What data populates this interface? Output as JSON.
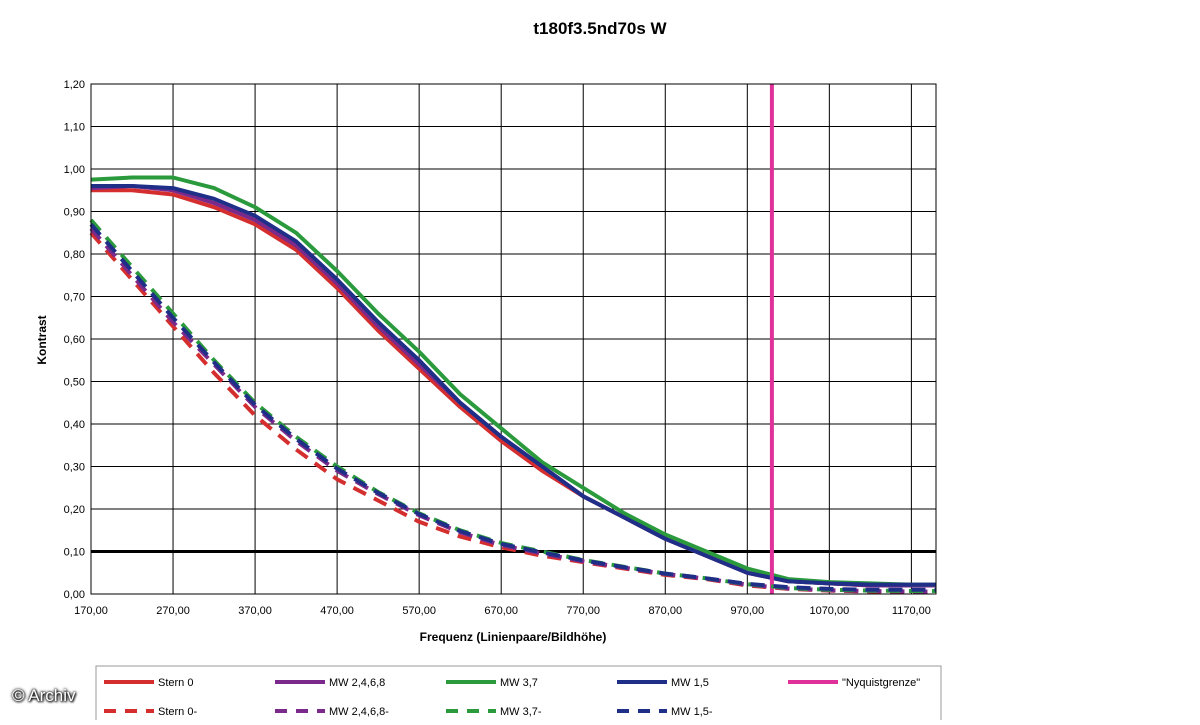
{
  "watermark": "© Archiv",
  "chart_data": {
    "type": "line",
    "title": "t180f3.5nd70s W",
    "xlabel": "Frequenz (Linienpaare/Bildhöhe)",
    "ylabel": "Kontrast",
    "xlim": [
      170,
      1200
    ],
    "ylim": [
      0,
      1.2
    ],
    "x_ticks": [
      "170,00",
      "270,00",
      "370,00",
      "470,00",
      "570,00",
      "670,00",
      "770,00",
      "870,00",
      "970,00",
      "1070,00",
      "1170,00"
    ],
    "y_ticks": [
      "0,00",
      "0,10",
      "0,20",
      "0,30",
      "0,40",
      "0,50",
      "0,60",
      "0,70",
      "0,80",
      "0,90",
      "1,00",
      "1,10",
      "1,20"
    ],
    "grid": true,
    "legend_position": "bottom",
    "reference_lines": [
      {
        "orientation": "horizontal",
        "value": 0.1,
        "color": "#000000"
      }
    ],
    "series": [
      {
        "name": "Stern 0",
        "color": "#d42e2e",
        "style": "solid",
        "x": [
          170,
          220,
          270,
          320,
          370,
          420,
          470,
          520,
          570,
          620,
          670,
          720,
          770,
          820,
          870,
          920,
          970,
          1020,
          1070,
          1120,
          1170,
          1200
        ],
        "y": [
          0.95,
          0.95,
          0.94,
          0.91,
          0.87,
          0.81,
          0.72,
          0.62,
          0.53,
          0.44,
          0.36,
          0.29,
          0.23,
          0.18,
          0.13,
          0.09,
          0.05,
          0.03,
          0.025,
          0.02,
          0.02,
          0.02
        ]
      },
      {
        "name": "MW 2,4,6,8",
        "color": "#7b2a8c",
        "style": "solid",
        "x": [
          170,
          220,
          270,
          320,
          370,
          420,
          470,
          520,
          570,
          620,
          670,
          720,
          770,
          820,
          870,
          920,
          970,
          1020,
          1070,
          1120,
          1170,
          1200
        ],
        "y": [
          0.955,
          0.96,
          0.95,
          0.92,
          0.88,
          0.82,
          0.73,
          0.63,
          0.54,
          0.45,
          0.37,
          0.3,
          0.23,
          0.18,
          0.13,
          0.09,
          0.05,
          0.03,
          0.025,
          0.02,
          0.02,
          0.02
        ]
      },
      {
        "name": "MW 3,7",
        "color": "#2a9a3c",
        "style": "solid",
        "x": [
          170,
          220,
          270,
          320,
          370,
          420,
          470,
          520,
          570,
          620,
          670,
          720,
          770,
          820,
          870,
          920,
          970,
          1020,
          1070,
          1120,
          1170,
          1200
        ],
        "y": [
          0.975,
          0.98,
          0.98,
          0.955,
          0.91,
          0.85,
          0.76,
          0.66,
          0.57,
          0.47,
          0.39,
          0.31,
          0.25,
          0.19,
          0.14,
          0.1,
          0.06,
          0.035,
          0.028,
          0.025,
          0.022,
          0.022
        ]
      },
      {
        "name": "MW 1,5",
        "color": "#1f2f88",
        "style": "solid",
        "x": [
          170,
          220,
          270,
          320,
          370,
          420,
          470,
          520,
          570,
          620,
          670,
          720,
          770,
          820,
          870,
          920,
          970,
          1020,
          1070,
          1120,
          1170,
          1200
        ],
        "y": [
          0.96,
          0.96,
          0.955,
          0.93,
          0.89,
          0.83,
          0.74,
          0.64,
          0.55,
          0.45,
          0.37,
          0.3,
          0.23,
          0.18,
          0.13,
          0.09,
          0.05,
          0.03,
          0.025,
          0.022,
          0.022,
          0.022
        ]
      },
      {
        "name": "\"Nyquistgrenze\"",
        "color": "#e0309a",
        "style": "solid",
        "x": [
          1000,
          1000
        ],
        "y": [
          0,
          1.2
        ]
      },
      {
        "name": "Stern 0-",
        "color": "#d42e2e",
        "style": "dashed",
        "x": [
          170,
          220,
          270,
          320,
          370,
          420,
          470,
          520,
          570,
          620,
          670,
          720,
          770,
          820,
          870,
          920,
          970,
          1020,
          1070,
          1120,
          1170,
          1200
        ],
        "y": [
          0.85,
          0.74,
          0.63,
          0.52,
          0.42,
          0.34,
          0.27,
          0.22,
          0.17,
          0.135,
          0.11,
          0.09,
          0.075,
          0.06,
          0.045,
          0.035,
          0.02,
          0.012,
          0.008,
          0.006,
          0.005,
          0.005
        ]
      },
      {
        "name": "MW 2,4,6,8-",
        "color": "#7b2a8c",
        "style": "dashed",
        "x": [
          170,
          220,
          270,
          320,
          370,
          420,
          470,
          520,
          570,
          620,
          670,
          720,
          770,
          820,
          870,
          920,
          970,
          1020,
          1070,
          1120,
          1170,
          1200
        ],
        "y": [
          0.86,
          0.75,
          0.64,
          0.54,
          0.44,
          0.36,
          0.29,
          0.235,
          0.185,
          0.145,
          0.115,
          0.095,
          0.077,
          0.062,
          0.047,
          0.036,
          0.022,
          0.013,
          0.009,
          0.007,
          0.006,
          0.006
        ]
      },
      {
        "name": "MW 3,7-",
        "color": "#2a9a3c",
        "style": "dashed",
        "x": [
          170,
          220,
          270,
          320,
          370,
          420,
          470,
          520,
          570,
          620,
          670,
          720,
          770,
          820,
          870,
          920,
          970,
          1020,
          1070,
          1120,
          1170,
          1200
        ],
        "y": [
          0.88,
          0.77,
          0.66,
          0.55,
          0.45,
          0.37,
          0.3,
          0.24,
          0.19,
          0.15,
          0.12,
          0.1,
          0.08,
          0.064,
          0.048,
          0.037,
          0.023,
          0.014,
          0.01,
          0.008,
          0.007,
          0.007
        ]
      },
      {
        "name": "MW 1,5-",
        "color": "#1f2f88",
        "style": "dashed",
        "x": [
          170,
          220,
          270,
          320,
          370,
          420,
          470,
          520,
          570,
          620,
          670,
          720,
          770,
          820,
          870,
          920,
          970,
          1020,
          1070,
          1120,
          1170,
          1200
        ],
        "y": [
          0.87,
          0.76,
          0.65,
          0.545,
          0.445,
          0.365,
          0.295,
          0.238,
          0.188,
          0.148,
          0.118,
          0.098,
          0.079,
          0.063,
          0.048,
          0.037,
          0.024,
          0.016,
          0.012,
          0.01,
          0.01,
          0.01
        ]
      }
    ]
  }
}
